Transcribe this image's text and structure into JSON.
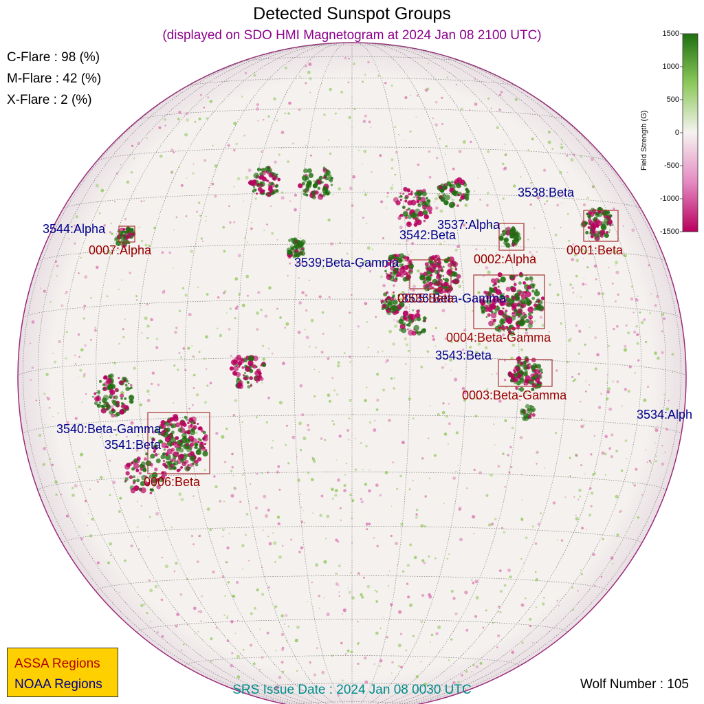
{
  "title": "Detected Sunspot Groups",
  "subtitle": "(displayed on SDO HMI Magnetogram at 2024 Jan 08 2100 UTC)",
  "flares": {
    "c": "C-Flare : 98 (%)",
    "m": "M-Flare : 42 (%)",
    "x": "X-Flare :  2 (%)"
  },
  "colorbar": {
    "label": "Field Strength (G)",
    "ticks": [
      "1500",
      "1000",
      "500",
      "0",
      "-500",
      "-1000",
      "-1500"
    ],
    "colors": {
      "positive": "#1f6f10",
      "negative": "#b8005e",
      "zero": "#f5f3f0"
    }
  },
  "srs_issue": "SRS Issue Date : 2024 Jan 08 0030 UTC",
  "wolf_number": "Wolf Number : 105",
  "legend": {
    "assa": "ASSA Regions",
    "noaa": "NOAA Regions"
  },
  "noaa_regions": [
    {
      "label": "3544:Alpha"
    },
    {
      "label": "3542:Beta"
    },
    {
      "label": "3537:Alpha"
    },
    {
      "label": "3538:Beta"
    },
    {
      "label": "3539:Beta-Gamma"
    },
    {
      "label": "3536:Beta-Gamma"
    },
    {
      "label": "3543:Beta"
    },
    {
      "label": "3540:Beta-Gamma"
    },
    {
      "label": "3541:Beta"
    },
    {
      "label": "3534:Alph"
    }
  ],
  "assa_regions": [
    {
      "label": "0007:Alpha"
    },
    {
      "label": "0002:Alpha"
    },
    {
      "label": "0001:Beta"
    },
    {
      "label": "0005:Beta"
    },
    {
      "label": "0004:Beta-Gamma"
    },
    {
      "label": "0003:Beta-Gamma"
    },
    {
      "label": "0006:Beta"
    }
  ]
}
